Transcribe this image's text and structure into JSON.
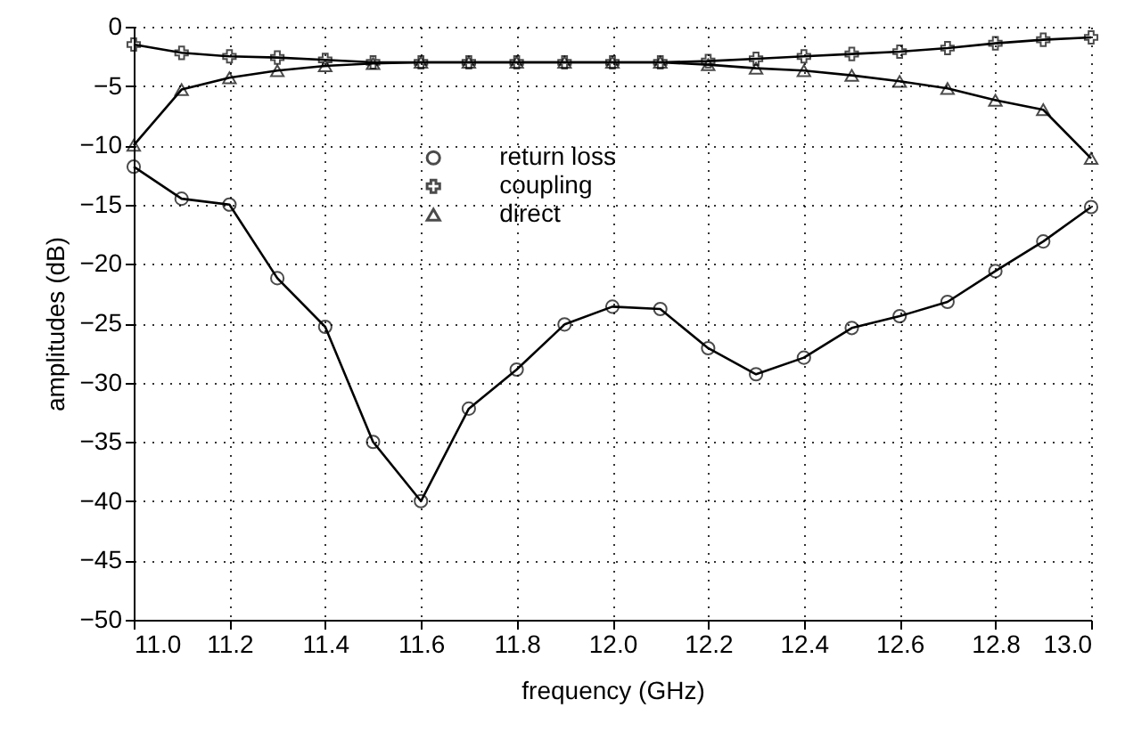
{
  "chart_data": {
    "type": "line",
    "xlabel": "frequency (GHz)",
    "ylabel": "amplitudes (dB)",
    "x": [
      11.0,
      11.1,
      11.2,
      11.3,
      11.4,
      11.5,
      11.6,
      11.7,
      11.8,
      11.9,
      12.0,
      12.1,
      12.2,
      12.3,
      12.4,
      12.5,
      12.6,
      12.7,
      12.8,
      12.9,
      13.0
    ],
    "series": [
      {
        "name": "return loss",
        "color": "#000000",
        "marker": "circle",
        "values": [
          -11.8,
          -14.5,
          -15,
          -21.2,
          -25.3,
          -35,
          -40,
          -32.2,
          -28.9,
          -25.1,
          -23.6,
          -23.8,
          -27.1,
          -29.3,
          -27.9,
          -25.4,
          -24.4,
          -23.2,
          -20.6,
          -18.1,
          -15.2
        ]
      },
      {
        "name": "coupling",
        "color": "#000000",
        "marker": "cross",
        "values": [
          -1.5,
          -2.2,
          -2.5,
          -2.6,
          -2.8,
          -3,
          -3,
          -3,
          -3,
          -3,
          -3,
          -3,
          -2.9,
          -2.7,
          -2.5,
          -2.3,
          -2.1,
          -1.8,
          -1.4,
          -1.1,
          -0.9
        ]
      },
      {
        "name": "direct",
        "color": "#000000",
        "marker": "triangle",
        "values": [
          -10,
          -5.3,
          -4.3,
          -3.7,
          -3.3,
          -3.1,
          -3,
          -3,
          -3,
          -3,
          -3,
          -3,
          -3.2,
          -3.5,
          -3.7,
          -4.1,
          -4.6,
          -5.2,
          -6.2,
          -7,
          -11.1
        ]
      }
    ],
    "xlim": [
      11.0,
      13.0
    ],
    "xticks": [
      {
        "value": 11,
        "label": "11.0"
      },
      11.2,
      11.4,
      11.6,
      11.8,
      {
        "value": 12,
        "label": "12.0"
      },
      12.2,
      12.4,
      12.6,
      12.8,
      {
        "value": 13,
        "label": "13.0"
      }
    ],
    "ylim": [
      -50,
      0
    ],
    "yticks": [
      -50,
      -45,
      -40,
      -35,
      -30,
      -25,
      -20,
      -15,
      -10,
      -5,
      0
    ],
    "grid": true,
    "legend": "top",
    "line_style": "solid"
  }
}
